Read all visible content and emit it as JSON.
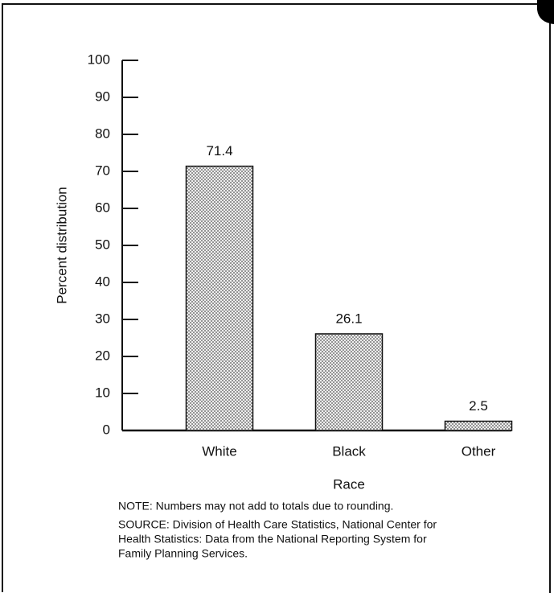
{
  "chart_data": {
    "type": "bar",
    "categories": [
      "White",
      "Black",
      "Other"
    ],
    "values": [
      71.4,
      26.1,
      2.5
    ],
    "color": "#555555",
    "xlabel": "Race",
    "ylabel": "Percent distribution",
    "ylim": [
      0,
      100
    ],
    "yticks": [
      0,
      10,
      20,
      30,
      40,
      50,
      60,
      70,
      80,
      90,
      100
    ],
    "note": "NOTE: Numbers may not add to totals due to rounding.",
    "source": [
      "SOURCE: Division of Health Care Statistics, National Center for",
      "Health Statistics:  Data from the National Reporting System for",
      "Family Planning Services."
    ]
  }
}
